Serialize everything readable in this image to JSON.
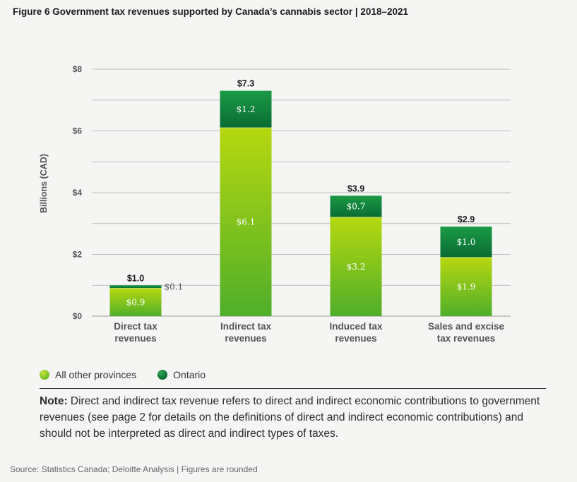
{
  "figure": {
    "title": "Figure 6  Government tax revenues supported by Canada’s cannabis sector | 2018–2021"
  },
  "chart_data": {
    "type": "bar",
    "stacked": true,
    "categories": [
      [
        "Direct tax",
        "revenues"
      ],
      [
        "Indirect tax",
        "revenues"
      ],
      [
        "Induced tax",
        "revenues"
      ],
      [
        "Sales and excise",
        "tax revenues"
      ]
    ],
    "series": [
      {
        "name": "All other provinces",
        "values": [
          0.9,
          6.1,
          3.2,
          1.9
        ],
        "labels": [
          "$0.9",
          "$6.1",
          "$3.2",
          "$1.9"
        ],
        "color": "#7cc322"
      },
      {
        "name": "Ontario",
        "values": [
          0.1,
          1.2,
          0.7,
          1.0
        ],
        "labels": [
          "$0.1",
          "$1.2",
          "$0.7",
          "$1.0"
        ],
        "color": "#128a3c"
      }
    ],
    "totals": [
      "$1.0",
      "$7.3",
      "$3.9",
      "$2.9"
    ],
    "total_values": [
      1.0,
      7.3,
      3.9,
      2.9
    ],
    "ylabel": "Billions (CAD)",
    "ylim": [
      0,
      8
    ],
    "yticks": [
      0,
      1,
      2,
      3,
      4,
      5,
      6,
      7,
      8
    ],
    "ytick_labels": {
      "0": "$0",
      "2": "$2",
      "4": "$4",
      "6": "$6",
      "8": "$8"
    },
    "grid": true,
    "legend_position": "bottom-left"
  },
  "legend": {
    "items": [
      {
        "label": "All other provinces",
        "color": "#7cc322"
      },
      {
        "label": "Ontario",
        "color": "#128a3c"
      }
    ]
  },
  "note": {
    "prefix": "Note:",
    "text": " Direct and indirect tax revenue refers to direct and indirect economic contributions to government revenues (see page 2 for details on the definitions of direct and indirect economic contributions) and should not be interpreted as direct and indirect types of taxes."
  },
  "source": "Source:  Statistics Canada; Deloitte Analysis | Figures are rounded"
}
